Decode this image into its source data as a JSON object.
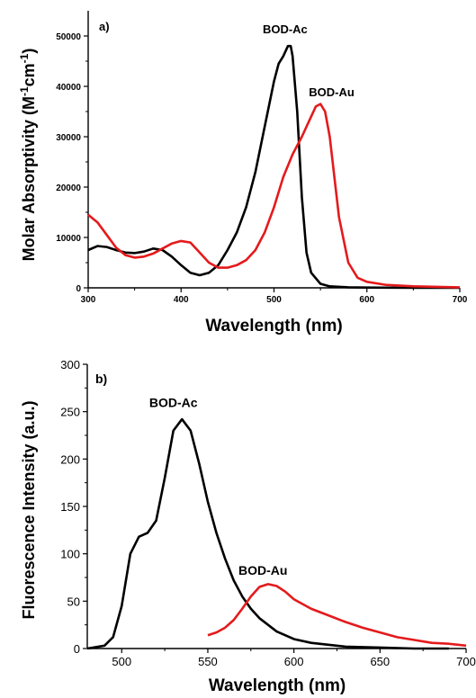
{
  "chart_data": [
    {
      "type": "line",
      "panel_label": "a)",
      "xlabel": "Wavelength (nm)",
      "ylabel": "Molar Absorptivity (M⁻¹cm⁻¹)",
      "xlim": [
        300,
        700
      ],
      "ylim": [
        0,
        55000
      ],
      "xticks": [
        300,
        400,
        500,
        600,
        700
      ],
      "yticks": [
        0,
        10000,
        20000,
        30000,
        40000,
        50000
      ],
      "series": [
        {
          "name": "BOD-Ac",
          "color": "#000000",
          "x": [
            300,
            310,
            320,
            330,
            340,
            350,
            360,
            370,
            380,
            390,
            400,
            410,
            420,
            430,
            440,
            450,
            460,
            470,
            480,
            490,
            500,
            505,
            510,
            515,
            518,
            520,
            525,
            530,
            535,
            540,
            550,
            560,
            580,
            600,
            650,
            700
          ],
          "y": [
            7500,
            8300,
            8100,
            7500,
            7000,
            6900,
            7200,
            7800,
            7500,
            6200,
            4500,
            3000,
            2500,
            3000,
            4500,
            7500,
            11000,
            16000,
            23000,
            32000,
            41000,
            44500,
            46000,
            48000,
            48000,
            46000,
            35000,
            18000,
            7000,
            3000,
            800,
            300,
            100,
            50,
            0,
            0
          ]
        },
        {
          "name": "BOD-Au",
          "color": "#e41a1c",
          "x": [
            300,
            310,
            320,
            330,
            340,
            350,
            360,
            370,
            380,
            390,
            400,
            410,
            420,
            430,
            440,
            450,
            460,
            470,
            480,
            490,
            500,
            510,
            520,
            530,
            540,
            545,
            550,
            555,
            560,
            565,
            570,
            580,
            590,
            600,
            620,
            650,
            700
          ],
          "y": [
            14500,
            13000,
            10500,
            8000,
            6500,
            6000,
            6200,
            6800,
            7800,
            8800,
            9300,
            9000,
            7000,
            5000,
            4000,
            4000,
            4500,
            5500,
            7500,
            11000,
            16000,
            22000,
            26500,
            30000,
            34000,
            36000,
            36500,
            35000,
            30000,
            22000,
            14000,
            5000,
            2000,
            1200,
            600,
            300,
            100
          ]
        }
      ]
    },
    {
      "type": "line",
      "panel_label": "b)",
      "xlabel": "Wavelength (nm)",
      "ylabel": "Fluorescence Intensity (a.u.)",
      "xlim": [
        480,
        700
      ],
      "ylim": [
        0,
        300
      ],
      "xticks": [
        500,
        550,
        600,
        650,
        700
      ],
      "yticks": [
        0,
        50,
        100,
        150,
        200,
        250,
        300
      ],
      "series": [
        {
          "name": "BOD-Ac",
          "color": "#000000",
          "x": [
            480,
            490,
            495,
            500,
            505,
            510,
            515,
            520,
            525,
            530,
            535,
            540,
            545,
            550,
            555,
            560,
            565,
            570,
            575,
            580,
            590,
            600,
            610,
            620,
            630,
            650,
            670,
            690
          ],
          "y": [
            0,
            3,
            12,
            45,
            100,
            118,
            122,
            135,
            180,
            230,
            242,
            230,
            195,
            155,
            122,
            95,
            72,
            55,
            42,
            32,
            18,
            10,
            6,
            4,
            2,
            1,
            0,
            0
          ]
        },
        {
          "name": "BOD-Au",
          "color": "#e41a1c",
          "x": [
            550,
            555,
            560,
            565,
            570,
            575,
            580,
            585,
            590,
            595,
            600,
            610,
            620,
            630,
            640,
            650,
            660,
            670,
            680,
            690,
            700
          ],
          "y": [
            14,
            17,
            22,
            30,
            42,
            55,
            65,
            68,
            66,
            60,
            52,
            42,
            35,
            28,
            22,
            17,
            12,
            9,
            6,
            5,
            3
          ]
        }
      ]
    }
  ],
  "annotations": {
    "a_ylabel_main": "Molar Absorptivity (M",
    "a_ylabel_sup1": "-1",
    "a_ylabel_mid": "cm",
    "a_ylabel_sup2": "-1",
    "a_ylabel_end": ")"
  }
}
